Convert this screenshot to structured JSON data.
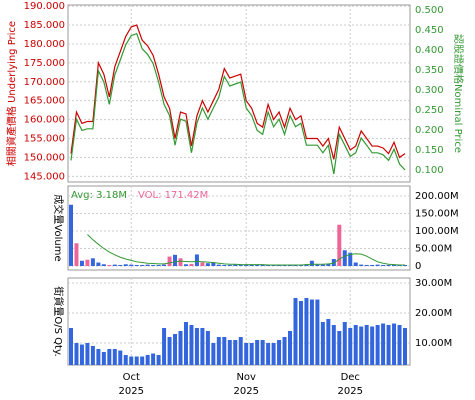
{
  "chart_data": [
    {
      "type": "line",
      "y_label": "相關資產價格 Underlying Price",
      "y2_label": "認股證價格Nominal Price",
      "ylim": [
        143.5,
        190.3
      ],
      "yticks": [
        {
          "value": 145,
          "label": "145.000"
        },
        {
          "value": 150,
          "label": "150.000"
        },
        {
          "value": 155,
          "label": "155.000"
        },
        {
          "value": 160,
          "label": "160.000"
        },
        {
          "value": 165,
          "label": "165.000"
        },
        {
          "value": 170,
          "label": "170.000"
        },
        {
          "value": 175,
          "label": "175.000"
        },
        {
          "value": 180,
          "label": "180.000"
        },
        {
          "value": 185,
          "label": "185.000"
        },
        {
          "value": 190,
          "label": "190.000"
        }
      ],
      "y2lim": [
        0.07,
        0.5125
      ],
      "y2ticks": [
        {
          "value": 0.1,
          "label": "0.100"
        },
        {
          "value": 0.15,
          "label": "0.150"
        },
        {
          "value": 0.2,
          "label": "0.200"
        },
        {
          "value": 0.25,
          "label": "0.250"
        },
        {
          "value": 0.3,
          "label": "0.300"
        },
        {
          "value": 0.35,
          "label": "0.350"
        },
        {
          "value": 0.4,
          "label": "0.400"
        },
        {
          "value": 0.45,
          "label": "0.450"
        },
        {
          "value": 0.5,
          "label": "0.500"
        }
      ],
      "grid": true,
      "series": [
        {
          "color": "#cc0000",
          "values": [
            151,
            162,
            159,
            159.5,
            159.5,
            175,
            172,
            166,
            174,
            178,
            182,
            184.5,
            185,
            181,
            179.5,
            177,
            172,
            166,
            163,
            155,
            162,
            161.5,
            153,
            161,
            165,
            162,
            165,
            168,
            173.5,
            171,
            171.5,
            172,
            165,
            163,
            159,
            158,
            164,
            160,
            162,
            158,
            163,
            160,
            161,
            155,
            155,
            155,
            153,
            155,
            149.5,
            158,
            155,
            152,
            153,
            157,
            155,
            153,
            153,
            152.5,
            151,
            154,
            150,
            151
          ]
        },
        {
          "color": "#339933",
          "axis": "y2",
          "values": [
            0.124,
            0.227,
            0.199,
            0.203,
            0.203,
            0.348,
            0.32,
            0.264,
            0.338,
            0.375,
            0.413,
            0.436,
            0.441,
            0.403,
            0.389,
            0.366,
            0.32,
            0.264,
            0.236,
            0.162,
            0.227,
            0.222,
            0.143,
            0.217,
            0.255,
            0.227,
            0.255,
            0.282,
            0.334,
            0.31,
            0.315,
            0.32,
            0.255,
            0.236,
            0.199,
            0.189,
            0.245,
            0.208,
            0.227,
            0.189,
            0.236,
            0.208,
            0.217,
            0.162,
            0.162,
            0.162,
            0.143,
            0.162,
            0.09,
            0.189,
            0.162,
            0.134,
            0.143,
            0.18,
            0.162,
            0.143,
            0.143,
            0.138,
            0.124,
            0.152,
            0.115,
            0.1
          ]
        }
      ]
    },
    {
      "type": "bar",
      "y_label": "成交量Volume",
      "avg_label": "Avg: 3.18M",
      "vol_label": "VOL: 171.42M",
      "ylim": [
        -11.4,
        228.6
      ],
      "yticks": [
        0,
        {
          "value": 50,
          "label": "50.00M"
        },
        {
          "value": 100,
          "label": "100.00M"
        },
        {
          "value": 150,
          "label": "150.00M"
        },
        {
          "value": 200,
          "label": "200.00M"
        }
      ],
      "grid": true,
      "values": [
        175,
        65,
        15,
        18,
        22,
        10,
        5,
        3,
        4,
        3,
        5,
        4,
        3,
        3,
        4,
        3,
        3,
        4,
        27,
        32,
        22,
        5,
        6,
        33,
        10,
        8,
        10,
        4,
        3,
        3,
        4,
        3,
        4,
        3,
        3,
        4,
        3,
        3,
        4,
        3,
        4,
        3,
        3,
        5,
        15,
        4,
        4,
        6,
        20,
        118,
        45,
        38,
        10,
        4,
        3,
        3,
        4,
        3,
        3,
        4,
        3,
        3
      ],
      "colors": [
        "#3366dd",
        "#ee6699",
        "#3366dd",
        "#ee6699",
        "#3366dd",
        "#3366dd",
        "#3366dd",
        "#ee6699",
        "#3366dd",
        "#3366dd",
        "#3366dd",
        "#3366dd",
        "#3366dd",
        "#3366dd",
        "#3366dd",
        "#3366dd",
        "#3366dd",
        "#3366dd",
        "#ee6699",
        "#3366dd",
        "#ee6699",
        "#3366dd",
        "#ee6699",
        "#3366dd",
        "#ee6699",
        "#3366dd",
        "#3366dd",
        "#3366dd",
        "#3366dd",
        "#3366dd",
        "#3366dd",
        "#3366dd",
        "#3366dd",
        "#3366dd",
        "#3366dd",
        "#3366dd",
        "#3366dd",
        "#3366dd",
        "#3366dd",
        "#3366dd",
        "#3366dd",
        "#3366dd",
        "#3366dd",
        "#3366dd",
        "#3366dd",
        "#3366dd",
        "#3366dd",
        "#3366dd",
        "#3366dd",
        "#ee6699",
        "#3366dd",
        "#3366dd",
        "#3366dd",
        "#3366dd",
        "#3366dd",
        "#3366dd",
        "#3366dd",
        "#3366dd",
        "#3366dd",
        "#3366dd",
        "#3366dd",
        "#3366dd"
      ],
      "avg_color": "#339933",
      "avg_values": [
        null,
        null,
        null,
        90,
        75,
        62,
        50,
        40,
        32,
        25,
        20,
        16,
        12,
        10,
        8,
        7,
        6,
        6,
        9,
        12,
        14,
        13,
        12,
        13,
        12,
        11,
        10,
        8,
        6,
        5,
        5,
        4,
        4,
        4,
        4,
        4,
        3,
        3,
        3,
        3,
        3,
        3,
        3,
        4,
        5,
        5,
        5,
        6,
        8,
        20,
        28,
        33,
        35,
        34,
        28,
        20,
        12,
        8,
        5,
        4,
        3,
        3
      ]
    },
    {
      "type": "bar",
      "y_label": "街貨量O/S Qty.",
      "ylim": [
        2.67,
        31.67
      ],
      "yticks": [
        {
          "value": 10,
          "label": "10.00M"
        },
        {
          "value": 20,
          "label": "20.00M"
        },
        {
          "value": 30,
          "label": "30.00M"
        }
      ],
      "grid": true,
      "color": "#3366dd",
      "values": [
        15,
        10,
        9.5,
        10,
        9,
        8,
        7,
        8,
        8,
        7.5,
        6,
        5.5,
        5.5,
        5.5,
        6,
        6.5,
        6,
        15,
        12,
        13,
        14,
        17,
        16,
        15,
        15,
        14,
        10,
        12,
        12,
        11,
        11,
        12,
        10,
        10,
        11,
        11,
        10,
        10,
        11,
        12,
        14,
        25,
        24,
        25,
        24.5,
        24.5,
        17,
        18,
        16,
        14,
        17,
        15,
        16,
        15.5,
        16,
        15.5,
        16,
        16.5,
        16,
        16.5,
        16,
        15
      ],
      "xticks": [
        {
          "value": 11,
          "label": "Oct",
          "year": "2025"
        },
        {
          "value": 32,
          "label": "Nov",
          "year": "2025"
        },
        {
          "value": 51,
          "label": "Dec",
          "year": "2025"
        }
      ]
    }
  ]
}
